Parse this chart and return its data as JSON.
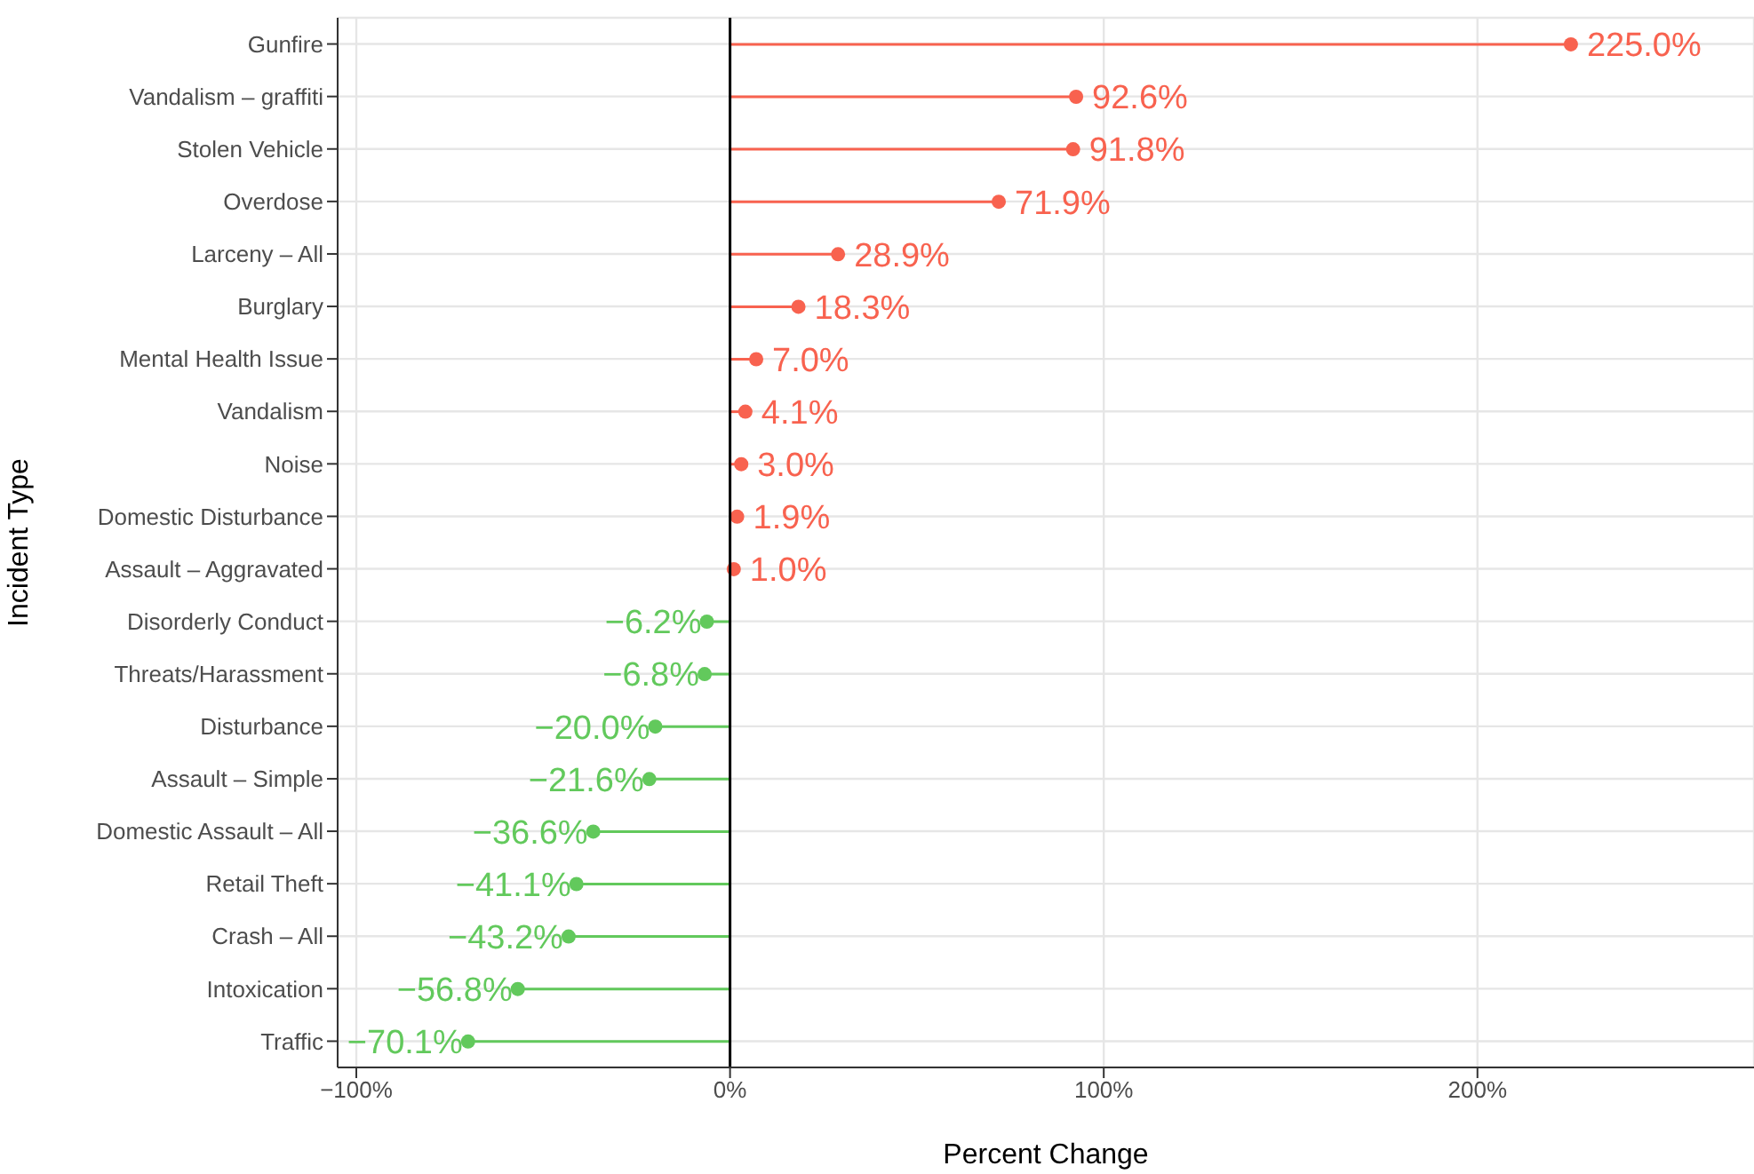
{
  "chart_data": {
    "type": "lollipop",
    "orientation": "horizontal",
    "xlabel": "Percent Change",
    "ylabel": "Incident Type",
    "categories": [
      "Gunfire",
      "Vandalism – graffiti",
      "Stolen Vehicle",
      "Overdose",
      "Larceny – All",
      "Burglary",
      "Mental Health Issue",
      "Vandalism",
      "Noise",
      "Domestic Disturbance",
      "Assault – Aggravated",
      "Disorderly Conduct",
      "Threats/Harassment",
      "Disturbance",
      "Assault – Simple",
      "Domestic Assault – All",
      "Retail Theft",
      "Crash – All",
      "Intoxication",
      "Traffic"
    ],
    "values": [
      225.0,
      92.6,
      91.8,
      71.9,
      28.9,
      18.3,
      7.0,
      4.1,
      3.0,
      1.9,
      1.0,
      -6.2,
      -6.8,
      -20.0,
      -21.6,
      -36.6,
      -41.1,
      -43.2,
      -56.8,
      -70.1
    ],
    "value_labels": [
      "225.0%",
      "92.6%",
      "91.8%",
      "71.9%",
      "28.9%",
      "18.3%",
      "7.0%",
      "4.1%",
      "3.0%",
      "1.9%",
      "1.0%",
      "−6.2%",
      "−6.8%",
      "−20.0%",
      "−21.6%",
      "−36.6%",
      "−41.1%",
      "−43.2%",
      "−56.8%",
      "−70.1%"
    ],
    "colors": [
      "#f8624f",
      "#f8624f",
      "#f8624f",
      "#f8624f",
      "#f8624f",
      "#f8624f",
      "#f8624f",
      "#f8624f",
      "#f8624f",
      "#f8624f",
      "#f8624f",
      "#62c95c",
      "#62c95c",
      "#62c95c",
      "#62c95c",
      "#62c95c",
      "#62c95c",
      "#62c95c",
      "#62c95c",
      "#62c95c"
    ],
    "xlim": [
      -105,
      274
    ],
    "xticks": [
      {
        "value": -100,
        "label": "−100%"
      },
      {
        "value": 0,
        "label": "0%"
      },
      {
        "value": 100,
        "label": "100%"
      },
      {
        "value": 200,
        "label": "200%"
      }
    ],
    "ref_lines": [
      {
        "axis": "x",
        "value": 0,
        "color": "#000000"
      }
    ],
    "grid": true,
    "marker": "circle"
  }
}
